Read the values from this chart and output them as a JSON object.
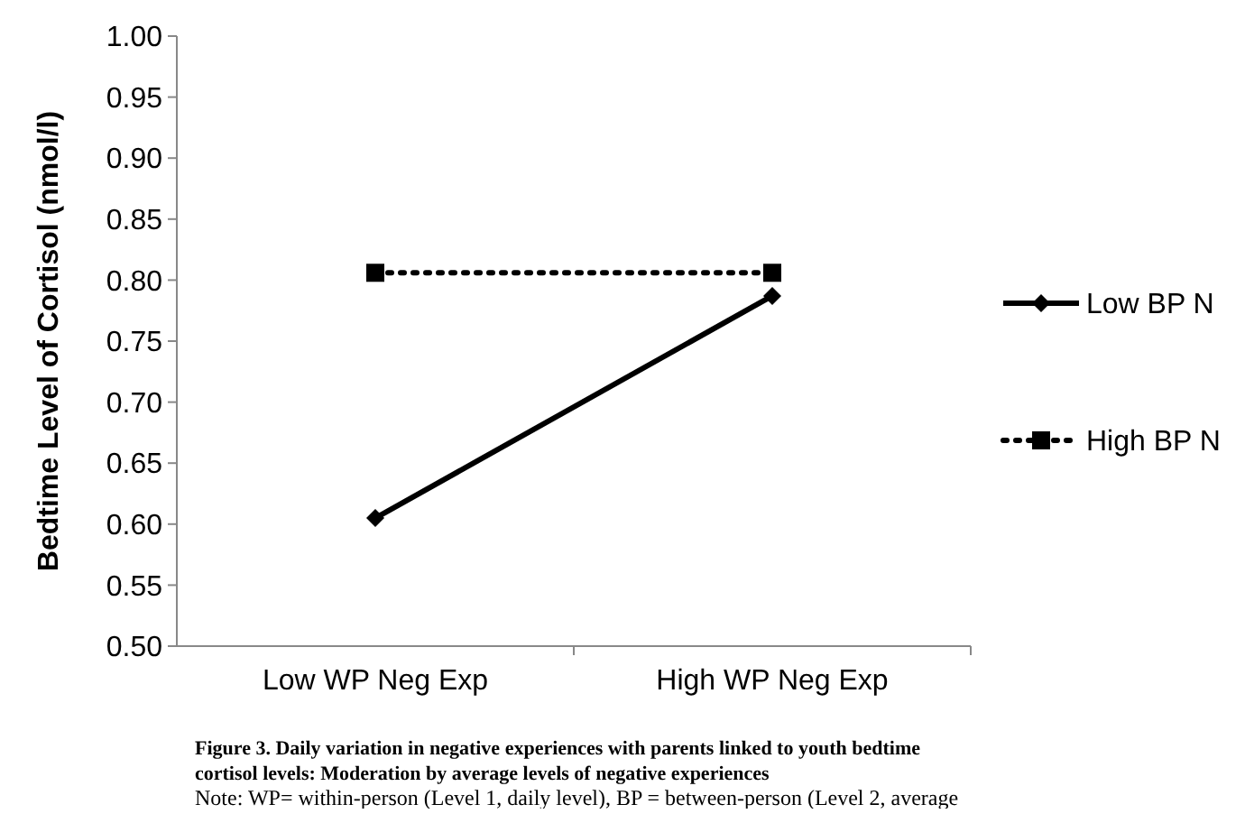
{
  "chart_data": {
    "type": "line",
    "ylabel": "Bedtime Level of Cortisol (nmol/l)",
    "categories": [
      "Low WP Neg Exp",
      "High WP Neg Exp"
    ],
    "series": [
      {
        "name": "Low BP N",
        "color": "#000000",
        "values": [
          0.605,
          0.787
        ],
        "marker": "diamond",
        "line_style": "solid"
      },
      {
        "name": "High BP N",
        "color": "#000000",
        "values": [
          0.806,
          0.806
        ],
        "marker": "square",
        "line_style": "dotted"
      }
    ],
    "ylim": [
      0.5,
      1.0
    ],
    "yticks": [
      {
        "value": 0.5,
        "label": "0.50"
      },
      0.55,
      {
        "value": 0.6,
        "label": "0.60"
      },
      0.65,
      {
        "value": 0.7,
        "label": "0.70"
      },
      0.75,
      {
        "value": 0.8,
        "label": "0.80"
      },
      0.85,
      {
        "value": 0.9,
        "label": "0.90"
      },
      0.95,
      {
        "value": 1,
        "label": "1.00"
      }
    ],
    "grid": false,
    "legend": "right",
    "annotations": [
      "Figure 3. Daily variation in negative experiences with parents linked to youth bedtime cortisol levels: Moderation by average levels of negative experiences",
      "Note: WP= within-person (Level 1, daily level), BP = between-person (Level 2, average"
    ]
  }
}
